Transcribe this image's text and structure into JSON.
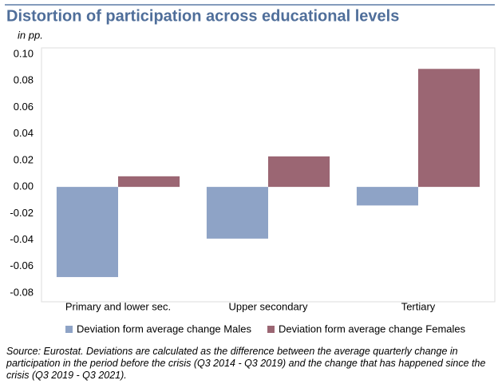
{
  "chart_data": {
    "type": "bar",
    "title": "Distortion of participation across educational levels",
    "subtitle": "in pp.",
    "categories": [
      "Primary and lower sec.",
      "Upper secondary",
      "Tertiary"
    ],
    "series": [
      {
        "name": "Deviation form average change Males",
        "color": "#8ea3c6",
        "values": [
          -0.068,
          -0.039,
          -0.014
        ]
      },
      {
        "name": "Deviation form average change Females",
        "color": "#9b6673",
        "values": [
          0.008,
          0.023,
          0.089
        ]
      }
    ],
    "ylim": [
      -0.08,
      0.1
    ],
    "yticks": [
      {
        "value": 0.1,
        "label": "0.10"
      },
      0.08,
      0.06,
      0.04,
      0.02,
      {
        "value": 0,
        "label": "0.00"
      },
      -0.02,
      -0.04,
      -0.06,
      -0.08
    ],
    "legend": "bottom",
    "note": "Source: Eurostat. Deviations are calculated as the difference between the average quarterly change in participation in the period before the crisis (Q3 2014 - Q3 2019) and the change that has happened since the crisis (Q3 2019 - Q3 2021)."
  }
}
